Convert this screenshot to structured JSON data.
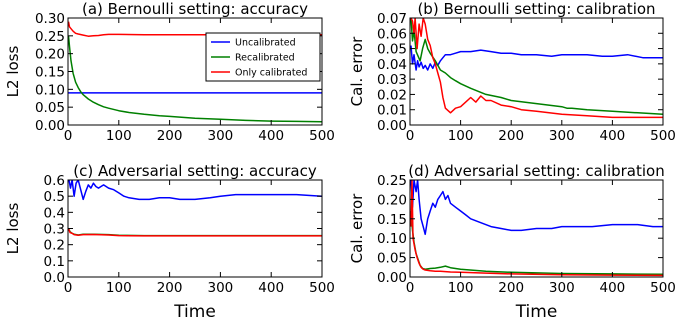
{
  "chart_data": [
    {
      "type": "line",
      "title": "(a) Bernoulli setting: accuracy",
      "xlabel": "",
      "ylabel": "L2 loss",
      "xlim": [
        0,
        500
      ],
      "ylim": [
        0,
        0.3
      ],
      "xticks": [
        "0",
        "100",
        "200",
        "300",
        "400",
        "500"
      ],
      "yticks": [
        "0.00",
        "0.05",
        "0.10",
        "0.15",
        "0.20",
        "0.25",
        "0.30"
      ],
      "grid": false,
      "legend": "top-right",
      "series": [
        {
          "name": "Uncalibrated",
          "color": "#0000ff",
          "x": [
            0,
            500
          ],
          "y": [
            0.09,
            0.09
          ]
        },
        {
          "name": "Recalibrated",
          "color": "#008000",
          "x": [
            1,
            3,
            6,
            10,
            15,
            20,
            25,
            30,
            40,
            50,
            60,
            70,
            80,
            100,
            120,
            150,
            180,
            200,
            250,
            300,
            350,
            400,
            450,
            500
          ],
          "y": [
            0.25,
            0.22,
            0.18,
            0.145,
            0.12,
            0.105,
            0.093,
            0.085,
            0.073,
            0.064,
            0.057,
            0.051,
            0.047,
            0.04,
            0.035,
            0.03,
            0.026,
            0.024,
            0.019,
            0.016,
            0.013,
            0.011,
            0.01,
            0.009
          ]
        },
        {
          "name": "Only calibrated",
          "color": "#ff0000",
          "x": [
            1,
            3,
            6,
            10,
            15,
            20,
            30,
            40,
            50,
            60,
            70,
            80,
            100,
            150,
            200,
            250,
            300,
            350,
            400,
            450,
            500
          ],
          "y": [
            0.29,
            0.275,
            0.27,
            0.263,
            0.257,
            0.255,
            0.252,
            0.249,
            0.25,
            0.251,
            0.253,
            0.254,
            0.254,
            0.253,
            0.253,
            0.253,
            0.253,
            0.253,
            0.253,
            0.253,
            0.253
          ]
        }
      ]
    },
    {
      "type": "line",
      "title": "(b) Bernoulli setting: calibration",
      "xlabel": "",
      "ylabel": "Cal. error",
      "xlim": [
        0,
        500
      ],
      "ylim": [
        0,
        0.07
      ],
      "xticks": [
        "0",
        "100",
        "200",
        "300",
        "400",
        "500"
      ],
      "yticks": [
        "0.00",
        "0.01",
        "0.02",
        "0.03",
        "0.04",
        "0.05",
        "0.06",
        "0.07"
      ],
      "grid": false,
      "series": [
        {
          "name": "Uncalibrated",
          "color": "#0000ff",
          "x": [
            2,
            5,
            8,
            12,
            15,
            18,
            22,
            26,
            30,
            35,
            40,
            45,
            50,
            55,
            60,
            65,
            70,
            80,
            90,
            100,
            120,
            140,
            160,
            180,
            200,
            220,
            250,
            280,
            300,
            320,
            350,
            380,
            400,
            430,
            460,
            500
          ],
          "y": [
            0.052,
            0.04,
            0.046,
            0.036,
            0.042,
            0.038,
            0.041,
            0.037,
            0.039,
            0.036,
            0.04,
            0.037,
            0.041,
            0.039,
            0.042,
            0.044,
            0.046,
            0.046,
            0.047,
            0.048,
            0.048,
            0.049,
            0.048,
            0.047,
            0.047,
            0.046,
            0.046,
            0.045,
            0.046,
            0.046,
            0.046,
            0.045,
            0.045,
            0.046,
            0.044,
            0.044
          ]
        },
        {
          "name": "Recalibrated",
          "color": "#008000",
          "x": [
            2,
            5,
            8,
            12,
            16,
            20,
            25,
            30,
            35,
            40,
            50,
            60,
            70,
            80,
            90,
            100,
            120,
            150,
            180,
            200,
            250,
            300,
            310,
            320,
            350,
            400,
            450,
            500
          ],
          "y": [
            0.07,
            0.055,
            0.062,
            0.048,
            0.045,
            0.042,
            0.05,
            0.056,
            0.05,
            0.047,
            0.042,
            0.036,
            0.034,
            0.031,
            0.029,
            0.027,
            0.024,
            0.02,
            0.018,
            0.016,
            0.014,
            0.012,
            0.011,
            0.011,
            0.01,
            0.009,
            0.008,
            0.007
          ]
        },
        {
          "name": "Only calibrated",
          "color": "#ff0000",
          "x": [
            2,
            5,
            8,
            10,
            14,
            18,
            22,
            26,
            30,
            35,
            40,
            45,
            50,
            55,
            60,
            65,
            70,
            80,
            90,
            100,
            110,
            120,
            130,
            140,
            150,
            160,
            180,
            200,
            220,
            250,
            300,
            350,
            400,
            450,
            500
          ],
          "y": [
            0.07,
            0.068,
            0.06,
            0.07,
            0.05,
            0.066,
            0.058,
            0.07,
            0.066,
            0.056,
            0.052,
            0.044,
            0.04,
            0.034,
            0.028,
            0.018,
            0.011,
            0.008,
            0.011,
            0.012,
            0.015,
            0.018,
            0.015,
            0.019,
            0.016,
            0.016,
            0.013,
            0.012,
            0.01,
            0.009,
            0.007,
            0.006,
            0.005,
            0.005,
            0.005
          ]
        }
      ]
    },
    {
      "type": "line",
      "title": "(c) Adversarial setting: accuracy",
      "xlabel": "Time",
      "ylabel": "L2 loss",
      "xlim": [
        0,
        500
      ],
      "ylim": [
        0,
        0.6
      ],
      "xticks": [
        "0",
        "100",
        "200",
        "300",
        "400",
        "500"
      ],
      "yticks": [
        "0.0",
        "0.1",
        "0.2",
        "0.3",
        "0.4",
        "0.5",
        "0.6"
      ],
      "grid": false,
      "series": [
        {
          "name": "Uncalibrated",
          "color": "#0000ff",
          "x": [
            2,
            5,
            8,
            12,
            16,
            20,
            25,
            30,
            35,
            40,
            45,
            50,
            55,
            60,
            65,
            70,
            80,
            90,
            100,
            110,
            120,
            140,
            160,
            180,
            200,
            220,
            250,
            280,
            300,
            330,
            360,
            400,
            450,
            500
          ],
          "y": [
            0.6,
            0.55,
            0.6,
            0.5,
            0.58,
            0.6,
            0.54,
            0.48,
            0.53,
            0.57,
            0.55,
            0.58,
            0.56,
            0.55,
            0.56,
            0.57,
            0.55,
            0.54,
            0.52,
            0.5,
            0.49,
            0.48,
            0.48,
            0.49,
            0.49,
            0.48,
            0.48,
            0.49,
            0.5,
            0.51,
            0.51,
            0.51,
            0.51,
            0.5
          ]
        },
        {
          "name": "Recalibrated",
          "color": "#008000",
          "x": [
            1,
            4,
            8,
            12,
            20,
            30,
            50,
            80,
            100,
            150,
            200,
            300,
            400,
            500
          ],
          "y": [
            0.3,
            0.28,
            0.27,
            0.265,
            0.26,
            0.265,
            0.265,
            0.262,
            0.258,
            0.256,
            0.256,
            0.256,
            0.256,
            0.256
          ]
        },
        {
          "name": "Only calibrated",
          "color": "#ff0000",
          "x": [
            1,
            4,
            8,
            12,
            20,
            30,
            50,
            80,
            100,
            150,
            200,
            300,
            400,
            500
          ],
          "y": [
            0.3,
            0.275,
            0.27,
            0.262,
            0.258,
            0.262,
            0.263,
            0.26,
            0.256,
            0.254,
            0.254,
            0.254,
            0.254,
            0.254
          ]
        }
      ]
    },
    {
      "type": "line",
      "title": "(d) Adversarial setting: calibration",
      "xlabel": "Time",
      "ylabel": "Cal. error",
      "xlim": [
        0,
        500
      ],
      "ylim": [
        0,
        0.25
      ],
      "xticks": [
        "0",
        "100",
        "200",
        "300",
        "400",
        "500"
      ],
      "yticks": [
        "0.00",
        "0.05",
        "0.10",
        "0.15",
        "0.20",
        "0.25"
      ],
      "grid": false,
      "series": [
        {
          "name": "Uncalibrated",
          "color": "#0000ff",
          "x": [
            2,
            5,
            8,
            12,
            15,
            18,
            22,
            26,
            30,
            35,
            40,
            45,
            50,
            55,
            60,
            65,
            70,
            75,
            80,
            90,
            100,
            110,
            120,
            140,
            160,
            180,
            200,
            220,
            250,
            280,
            300,
            330,
            360,
            400,
            450,
            480,
            500
          ],
          "y": [
            0.25,
            0.18,
            0.25,
            0.22,
            0.25,
            0.2,
            0.15,
            0.13,
            0.11,
            0.15,
            0.17,
            0.19,
            0.18,
            0.2,
            0.21,
            0.22,
            0.2,
            0.21,
            0.19,
            0.18,
            0.17,
            0.16,
            0.15,
            0.14,
            0.13,
            0.125,
            0.12,
            0.12,
            0.125,
            0.125,
            0.13,
            0.13,
            0.13,
            0.135,
            0.135,
            0.13,
            0.13
          ]
        },
        {
          "name": "Recalibrated",
          "color": "#008000",
          "x": [
            2,
            5,
            8,
            12,
            16,
            20,
            25,
            30,
            40,
            50,
            60,
            70,
            80,
            100,
            150,
            200,
            300,
            400,
            500
          ],
          "y": [
            0.17,
            0.12,
            0.09,
            0.06,
            0.045,
            0.03,
            0.022,
            0.02,
            0.022,
            0.023,
            0.025,
            0.028,
            0.024,
            0.02,
            0.015,
            0.012,
            0.009,
            0.008,
            0.007
          ]
        },
        {
          "name": "Only calibrated",
          "color": "#ff0000",
          "x": [
            2,
            4,
            6,
            10,
            14,
            18,
            22,
            26,
            30,
            40,
            50,
            60,
            70,
            80,
            100,
            150,
            200,
            300,
            400,
            500
          ],
          "y": [
            0.13,
            0.25,
            0.1,
            0.07,
            0.05,
            0.035,
            0.025,
            0.02,
            0.018,
            0.016,
            0.015,
            0.015,
            0.014,
            0.013,
            0.012,
            0.01,
            0.008,
            0.006,
            0.005,
            0.004
          ]
        }
      ]
    }
  ]
}
